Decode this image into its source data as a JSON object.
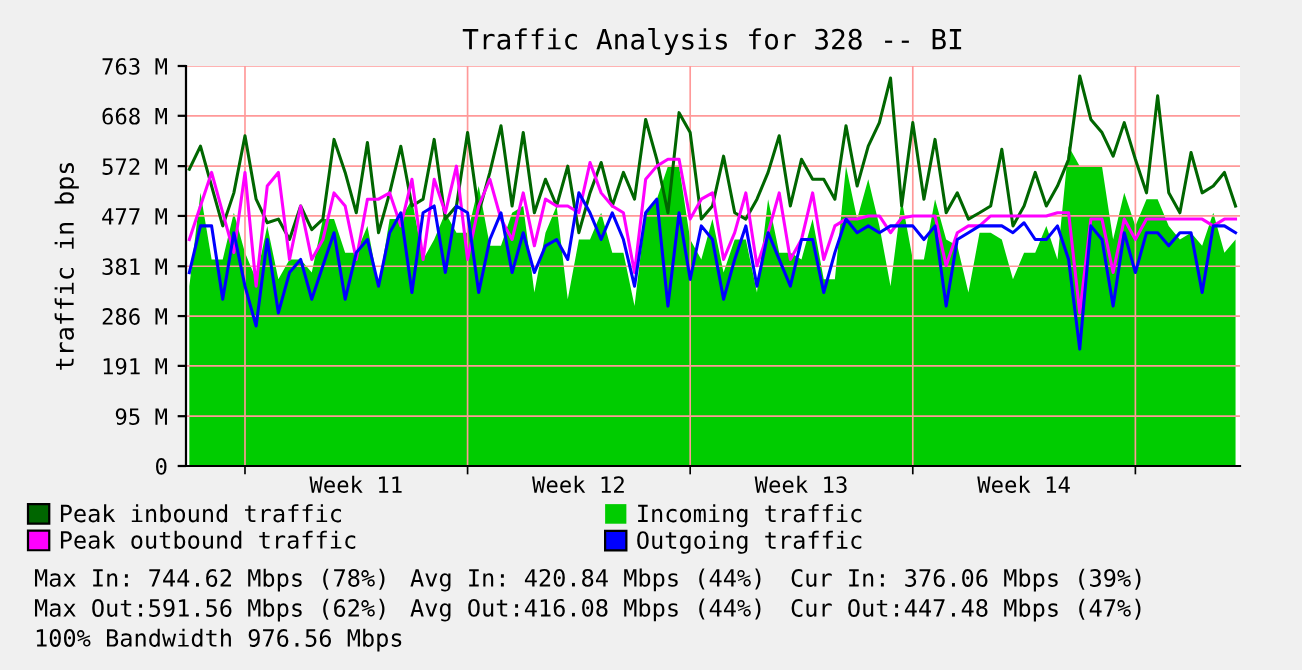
{
  "chart_data": {
    "type": "line",
    "title": "Traffic Analysis for 328 -- BI",
    "ylabel": "traffic in bps",
    "categories": [
      null,
      null,
      null,
      null,
      null,
      null,
      null,
      null,
      null,
      null,
      null,
      null,
      null,
      null,
      null,
      "Week 11",
      null,
      null,
      null,
      null,
      null,
      null,
      null,
      null,
      null,
      null,
      null,
      null,
      null,
      null,
      null,
      null,
      null,
      null,
      null,
      "Week 12",
      null,
      null,
      null,
      null,
      null,
      null,
      null,
      null,
      null,
      null,
      null,
      null,
      null,
      null,
      null,
      null,
      null,
      null,
      null,
      "Week 13",
      null,
      null,
      null,
      null,
      null,
      null,
      null,
      null,
      null,
      null,
      null,
      null,
      null,
      null,
      null,
      null,
      null,
      null,
      null,
      "Week 14",
      null,
      null,
      null,
      null,
      null,
      null,
      null,
      null,
      null,
      null,
      null,
      null,
      null,
      null,
      null,
      null,
      null,
      null,
      null
    ],
    "ylim": [
      0,
      763
    ],
    "yticks": [
      0,
      {
        "value": 95,
        "label": "95 M"
      },
      {
        "value": 191,
        "label": "191 M"
      },
      {
        "value": 286,
        "label": "286 M"
      },
      {
        "value": 381,
        "label": "381 M"
      },
      {
        "value": 477,
        "label": "477 M"
      },
      {
        "value": 572,
        "label": "572 M"
      },
      {
        "value": 668,
        "label": "668 M"
      },
      {
        "value": 763,
        "label": "763 M"
      }
    ],
    "grid": true,
    "legend": "bottom",
    "series": [
      {
        "name": "Peak inbound traffic",
        "color": "#006600",
        "values": [
          566,
          610,
          534,
          458,
          521,
          630,
          509,
          464,
          471,
          432,
          496,
          451,
          471,
          623,
          560,
          483,
          617,
          445,
          521,
          610,
          496,
          509,
          623,
          471,
          496,
          636,
          483,
          560,
          649,
          496,
          636,
          483,
          547,
          496,
          572,
          445,
          521,
          579,
          496,
          560,
          509,
          661,
          585,
          483,
          674,
          636,
          471,
          496,
          591,
          483,
          471,
          509,
          560,
          630,
          496,
          585,
          547,
          547,
          509,
          649,
          534,
          610,
          655,
          740,
          496,
          655,
          509,
          623,
          483,
          521,
          471,
          483,
          496,
          604,
          458,
          496,
          560,
          496,
          534,
          585,
          744,
          661,
          636,
          591,
          655,
          585,
          521,
          706,
          521,
          483,
          598,
          521,
          534,
          560,
          496
        ]
      },
      {
        "name": "Incoming traffic",
        "color": "#00cc00",
        "type": "area",
        "values": [
          343,
          521,
          394,
          394,
          483,
          407,
          356,
          458,
          356,
          394,
          394,
          369,
          471,
          471,
          407,
          407,
          458,
          343,
          471,
          471,
          509,
          394,
          432,
          483,
          445,
          445,
          534,
          420,
          420,
          483,
          496,
          331,
          445,
          496,
          318,
          432,
          432,
          483,
          407,
          407,
          305,
          483,
          509,
          572,
          572,
          432,
          394,
          471,
          369,
          432,
          432,
          331,
          509,
          407,
          407,
          394,
          471,
          356,
          356,
          572,
          471,
          547,
          458,
          343,
          509,
          394,
          394,
          509,
          432,
          420,
          331,
          445,
          445,
          432,
          356,
          407,
          407,
          458,
          394,
          610,
          572,
          572,
          572,
          432,
          521,
          458,
          509,
          509,
          458,
          432,
          445,
          420,
          483,
          407,
          432
        ]
      },
      {
        "name": "Peak outbound traffic",
        "color": "#ff00ff",
        "values": [
          432,
          496,
          560,
          483,
          407,
          560,
          343,
          534,
          560,
          394,
          496,
          394,
          432,
          521,
          496,
          394,
          509,
          509,
          521,
          458,
          547,
          394,
          547,
          483,
          572,
          394,
          496,
          547,
          471,
          432,
          521,
          420,
          509,
          496,
          496,
          483,
          579,
          521,
          496,
          483,
          369,
          547,
          572,
          585,
          585,
          471,
          509,
          521,
          394,
          445,
          521,
          382,
          445,
          521,
          394,
          432,
          521,
          394,
          458,
          471,
          471,
          477,
          477,
          445,
          473,
          477,
          477,
          477,
          382,
          445,
          458,
          458,
          477,
          477,
          477,
          477,
          477,
          477,
          483,
          483,
          292,
          471,
          471,
          369,
          471,
          432,
          471,
          471,
          471,
          471,
          471,
          471,
          458,
          471,
          471
        ]
      },
      {
        "name": "Outgoing traffic",
        "color": "#0000ff",
        "values": [
          369,
          458,
          458,
          318,
          445,
          343,
          267,
          432,
          292,
          369,
          394,
          318,
          382,
          445,
          318,
          407,
          432,
          343,
          445,
          483,
          331,
          483,
          496,
          369,
          496,
          483,
          331,
          432,
          483,
          369,
          445,
          369,
          420,
          432,
          394,
          521,
          483,
          432,
          483,
          432,
          343,
          483,
          509,
          305,
          483,
          356,
          458,
          432,
          318,
          394,
          458,
          343,
          445,
          394,
          343,
          432,
          432,
          331,
          407,
          471,
          445,
          458,
          445,
          458,
          458,
          458,
          432,
          458,
          305,
          432,
          445,
          458,
          458,
          458,
          445,
          464,
          432,
          432,
          458,
          394,
          223,
          458,
          432,
          305,
          445,
          369,
          445,
          445,
          420,
          445,
          445,
          331,
          458,
          458,
          445
        ]
      }
    ],
    "annotations": [
      "Max In: 744.62 Mbps (78%)",
      "Avg In: 420.84 Mbps (44%)",
      "Cur In: 376.06 Mbps (39%)",
      "Max Out:591.56 Mbps (62%)",
      "Avg Out:416.08 Mbps (44%)",
      "Cur Out:447.48 Mbps (47%)",
      "100% Bandwidth 976.56 Mbps"
    ]
  }
}
